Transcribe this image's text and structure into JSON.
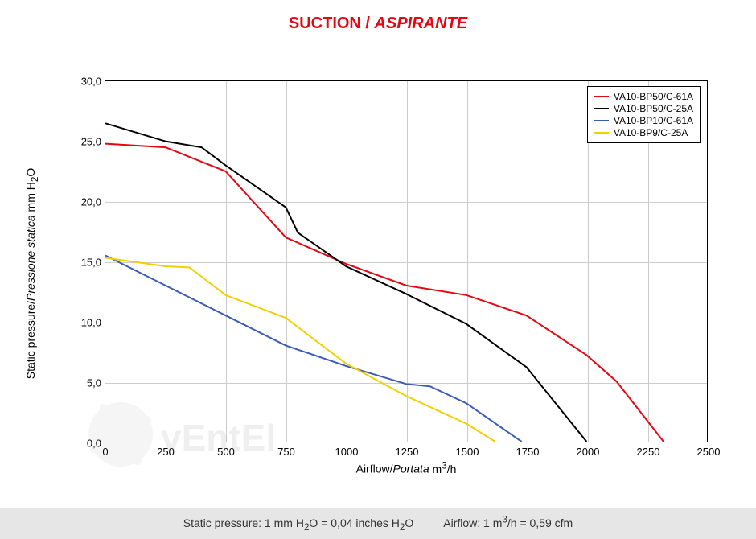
{
  "title": {
    "plain": "SUCTION / ",
    "italic": "ASPIRANTE",
    "color": "#e30613",
    "fontsize": 20
  },
  "chart": {
    "type": "line",
    "background_color": "#ffffff",
    "grid_color": "#cccccc",
    "border_color": "#000000",
    "xlim": [
      0,
      2500
    ],
    "ylim": [
      0,
      30
    ],
    "xtick_step": 250,
    "ytick_step": 5,
    "xticks": [
      "0",
      "250",
      "500",
      "750",
      "1000",
      "1250",
      "1500",
      "1750",
      "2000",
      "2250",
      "2500"
    ],
    "yticks": [
      "0,0",
      "5,0",
      "10,0",
      "15,0",
      "20,0",
      "25,0",
      "30,0"
    ],
    "xlabel_plain": "Airflow/",
    "xlabel_italic": "Portata",
    "xlabel_unit_html": "  m<sup>3</sup>/h",
    "ylabel_plain": "Static pressure/",
    "ylabel_italic": "Pressione statica",
    "ylabel_unit_html": "  mm  H<sub>2</sub>O",
    "label_fontsize": 14,
    "tick_fontsize": 13,
    "line_width": 2,
    "series": [
      {
        "name": "VA10-BP50/C-61A",
        "color": "#e30613",
        "points": [
          [
            0,
            24.8
          ],
          [
            250,
            24.5
          ],
          [
            500,
            22.5
          ],
          [
            750,
            17.0
          ],
          [
            1000,
            14.8
          ],
          [
            1250,
            13.0
          ],
          [
            1500,
            12.2
          ],
          [
            1750,
            10.5
          ],
          [
            2000,
            7.2
          ],
          [
            2125,
            5.0
          ],
          [
            2320,
            0.0
          ]
        ]
      },
      {
        "name": "VA10-BP50/C-25A",
        "color": "#000000",
        "points": [
          [
            0,
            26.5
          ],
          [
            250,
            25.0
          ],
          [
            400,
            24.5
          ],
          [
            500,
            23.0
          ],
          [
            750,
            19.5
          ],
          [
            800,
            17.4
          ],
          [
            1000,
            14.6
          ],
          [
            1250,
            12.3
          ],
          [
            1500,
            9.8
          ],
          [
            1750,
            6.2
          ],
          [
            2000,
            0.0
          ]
        ]
      },
      {
        "name": "VA10-BP10/C-61A",
        "color": "#3b5bb5",
        "points": [
          [
            0,
            15.5
          ],
          [
            250,
            13.0
          ],
          [
            500,
            10.5
          ],
          [
            750,
            8.0
          ],
          [
            1000,
            6.3
          ],
          [
            1250,
            4.8
          ],
          [
            1350,
            4.6
          ],
          [
            1500,
            3.2
          ],
          [
            1730,
            0.0
          ]
        ]
      },
      {
        "name": "VA10-BP9/C-25A",
        "color": "#f0d000",
        "points": [
          [
            0,
            15.3
          ],
          [
            250,
            14.6
          ],
          [
            350,
            14.5
          ],
          [
            500,
            12.2
          ],
          [
            750,
            10.3
          ],
          [
            1000,
            6.5
          ],
          [
            1250,
            3.8
          ],
          [
            1500,
            1.5
          ],
          [
            1620,
            0.0
          ]
        ]
      }
    ],
    "legend": {
      "position": "top-right",
      "border_color": "#000000",
      "fontsize": 12
    }
  },
  "footer": {
    "background": "#e6e6e6",
    "fontsize": 14,
    "left_html": "Static pressure: 1 mm H<sub>2</sub>O = 0,04 inches H<sub>2</sub>O",
    "right_html": "Airflow: 1 m<sup>3</sup>/h = 0,59 cfm"
  },
  "watermark": {
    "text": "vEntEl",
    "color": "#808080",
    "opacity": 0.12
  }
}
